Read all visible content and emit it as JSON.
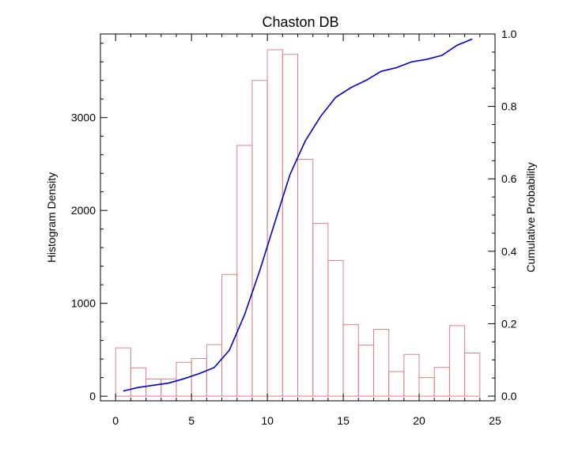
{
  "chart_data": {
    "type": "bar",
    "title": "Chaston DB",
    "xlabel": "",
    "ylabel": "Histogram Density",
    "y2label": "Cumulative Probability",
    "xlim": [
      -1,
      25
    ],
    "ylim": [
      -50,
      3900
    ],
    "y2lim": [
      -0.013,
      1.0
    ],
    "xticks": [
      0,
      5,
      10,
      15,
      20,
      25
    ],
    "yticks": [
      0,
      1000,
      2000,
      3000
    ],
    "y2ticks": [
      "0.0",
      "0.2",
      "0.4",
      "0.6",
      "0.8",
      "1.0"
    ],
    "grid": false,
    "colors": {
      "bars": "#e08080",
      "line": "#0000cc",
      "axes": "#000000"
    },
    "bins": [
      {
        "x0": 0,
        "x1": 1,
        "value": 520
      },
      {
        "x0": 1,
        "x1": 2,
        "value": 305
      },
      {
        "x0": 2,
        "x1": 3,
        "value": 185
      },
      {
        "x0": 3,
        "x1": 4,
        "value": 185
      },
      {
        "x0": 4,
        "x1": 5,
        "value": 365
      },
      {
        "x0": 5,
        "x1": 6,
        "value": 405
      },
      {
        "x0": 6,
        "x1": 7,
        "value": 555
      },
      {
        "x0": 7,
        "x1": 8,
        "value": 1310
      },
      {
        "x0": 8,
        "x1": 9,
        "value": 2700
      },
      {
        "x0": 9,
        "x1": 10,
        "value": 3400
      },
      {
        "x0": 10,
        "x1": 11,
        "value": 3730
      },
      {
        "x0": 11,
        "x1": 12,
        "value": 3680
      },
      {
        "x0": 12,
        "x1": 13,
        "value": 2550
      },
      {
        "x0": 13,
        "x1": 14,
        "value": 1860
      },
      {
        "x0": 14,
        "x1": 15,
        "value": 1460
      },
      {
        "x0": 15,
        "x1": 16,
        "value": 770
      },
      {
        "x0": 16,
        "x1": 17,
        "value": 550
      },
      {
        "x0": 17,
        "x1": 18,
        "value": 720
      },
      {
        "x0": 18,
        "x1": 19,
        "value": 265
      },
      {
        "x0": 19,
        "x1": 20,
        "value": 450
      },
      {
        "x0": 20,
        "x1": 21,
        "value": 200
      },
      {
        "x0": 21,
        "x1": 22,
        "value": 310
      },
      {
        "x0": 22,
        "x1": 23,
        "value": 760
      },
      {
        "x0": 23,
        "x1": 24,
        "value": 465
      }
    ],
    "cumulative": {
      "x": [
        0.5,
        1.5,
        2.5,
        3.5,
        4.5,
        5.5,
        6.5,
        7.5,
        8.5,
        9.5,
        10.5,
        11.5,
        12.5,
        13.5,
        14.5,
        15.5,
        16.5,
        17.5,
        18.5,
        19.5,
        20.5,
        21.5,
        22.5,
        23.5
      ],
      "y": [
        0.014,
        0.024,
        0.03,
        0.036,
        0.048,
        0.062,
        0.079,
        0.127,
        0.225,
        0.347,
        0.481,
        0.613,
        0.705,
        0.772,
        0.825,
        0.852,
        0.872,
        0.897,
        0.907,
        0.923,
        0.93,
        0.941,
        0.969,
        0.986
      ]
    }
  }
}
